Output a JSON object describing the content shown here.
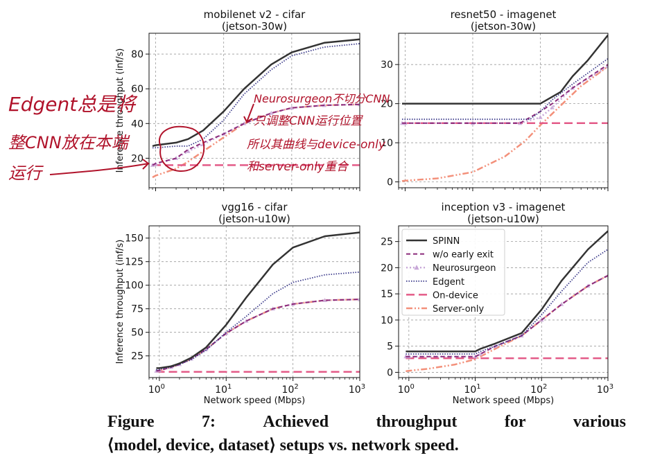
{
  "chart_data": [
    {
      "type": "line",
      "title": "mobilenet v2 - cifar",
      "subtitle": "(jetson-30w)",
      "xlabel": "",
      "ylabel": "Inference throughput (inf/s)",
      "xscale": "log",
      "xlim": [
        0.8,
        1000
      ],
      "ylim": [
        3,
        92
      ],
      "yticks": [
        20,
        40,
        60,
        80
      ],
      "grid": true,
      "series": [
        {
          "name": "SPINN",
          "x": [
            0.9,
            1,
            2,
            3,
            5,
            10,
            20,
            50,
            100,
            300,
            1000
          ],
          "values": [
            27,
            27.5,
            29,
            31,
            36,
            47,
            60,
            74,
            81,
            86.5,
            88.5
          ]
        },
        {
          "name": "w/o early exit",
          "x": [
            0.9,
            1,
            2,
            3,
            5,
            10,
            20,
            50,
            100,
            300,
            1000
          ],
          "values": [
            16,
            17,
            20,
            25,
            29,
            34,
            40,
            46,
            49,
            50.5,
            51
          ]
        },
        {
          "name": "Neurosurgeon",
          "x": [
            0.9,
            1,
            2,
            3,
            5,
            10,
            20,
            50,
            100,
            300,
            1000
          ],
          "values": [
            16,
            16.5,
            20,
            24,
            28,
            34,
            40,
            46,
            49,
            50.5,
            51
          ]
        },
        {
          "name": "Edgent",
          "x": [
            0.9,
            1,
            2,
            3,
            5,
            10,
            20,
            50,
            100,
            300,
            1000
          ],
          "values": [
            26,
            26,
            27,
            27,
            31,
            42,
            57,
            71,
            79,
            84,
            86
          ]
        },
        {
          "name": "On-device",
          "x": [
            0.9,
            1000
          ],
          "values": [
            16,
            16
          ]
        },
        {
          "name": "Server-only",
          "x": [
            0.9,
            1,
            2,
            3,
            5,
            10,
            20,
            50,
            100,
            300,
            1000
          ],
          "values": [
            9,
            10,
            14,
            18,
            24,
            32,
            40,
            46,
            49,
            50.5,
            51
          ]
        }
      ]
    },
    {
      "type": "line",
      "title": "resnet50 - imagenet",
      "subtitle": "(jetson-30w)",
      "xlabel": "",
      "ylabel": "",
      "xscale": "log",
      "xlim": [
        0.8,
        1000
      ],
      "ylim": [
        -1.5,
        38
      ],
      "yticks": [
        0,
        10,
        20,
        30
      ],
      "grid": true,
      "series": [
        {
          "name": "SPINN",
          "x": [
            0.9,
            1,
            10,
            100,
            200,
            300,
            500,
            1000
          ],
          "values": [
            20,
            20,
            20,
            20,
            23,
            27,
            31,
            37.5
          ]
        },
        {
          "name": "w/o early exit",
          "x": [
            0.9,
            1,
            10,
            50,
            100,
            150,
            300,
            1000
          ],
          "values": [
            15,
            15,
            15,
            15,
            18,
            20,
            24,
            30
          ]
        },
        {
          "name": "Neurosurgeon",
          "x": [
            0.9,
            1,
            10,
            50,
            100,
            150,
            300,
            1000
          ],
          "values": [
            15,
            15,
            15,
            15,
            16.5,
            19,
            24,
            29.5
          ]
        },
        {
          "name": "Edgent",
          "x": [
            0.9,
            1,
            10,
            70,
            100,
            150,
            300,
            1000
          ],
          "values": [
            16,
            16,
            16,
            16,
            18,
            21,
            25,
            31.5
          ]
        },
        {
          "name": "On-device",
          "x": [
            0.9,
            1000
          ],
          "values": [
            15,
            15
          ]
        },
        {
          "name": "Server-only",
          "x": [
            0.9,
            1,
            3,
            10,
            30,
            60,
            100,
            200,
            400,
            1000
          ],
          "values": [
            0.2,
            0.3,
            0.9,
            2.5,
            6.5,
            10.5,
            14.5,
            19.5,
            24.5,
            29.5
          ]
        }
      ]
    },
    {
      "type": "line",
      "title": "vgg16 - cifar",
      "subtitle": "(jetson-u10w)",
      "xlabel": "Network speed (Mbps)",
      "ylabel": "Inference throughput (inf/s)",
      "xscale": "log",
      "xlim": [
        0.7,
        1000
      ],
      "xticklabels": [
        "10^0",
        "10^1",
        "10^2",
        "10^3"
      ],
      "ylim": [
        2,
        163
      ],
      "yticks": [
        25,
        50,
        75,
        100,
        125,
        150
      ],
      "grid": true,
      "series": [
        {
          "name": "SPINN",
          "x": [
            0.9,
            1,
            1.5,
            2,
            3,
            5,
            10,
            20,
            50,
            100,
            300,
            1000
          ],
          "values": [
            12,
            12,
            14,
            17,
            23,
            34,
            58,
            87,
            122,
            140,
            152,
            156
          ]
        },
        {
          "name": "w/o early exit",
          "x": [
            0.9,
            1,
            1.5,
            2,
            3,
            5,
            10,
            20,
            50,
            100,
            300,
            1000
          ],
          "values": [
            9,
            9.5,
            13,
            16,
            22,
            32,
            49,
            62,
            75,
            80,
            84,
            85
          ]
        },
        {
          "name": "Neurosurgeon",
          "x": [
            0.9,
            1,
            1.5,
            2,
            3,
            5,
            10,
            20,
            50,
            100,
            300,
            1000
          ],
          "values": [
            9,
            9.5,
            13,
            16,
            22,
            32,
            49,
            62,
            75,
            80,
            84,
            85
          ]
        },
        {
          "name": "Edgent",
          "x": [
            0.9,
            1,
            1.5,
            2,
            3,
            5,
            10,
            20,
            50,
            100,
            300,
            1000
          ],
          "values": [
            10,
            11,
            13,
            16,
            21,
            31,
            50,
            67,
            91,
            103,
            111,
            114
          ]
        },
        {
          "name": "On-device",
          "x": [
            0.9,
            1000
          ],
          "values": [
            8,
            8
          ]
        },
        {
          "name": "Server-only",
          "x": [
            0.9,
            1,
            1.5,
            2,
            3,
            5,
            10,
            20,
            50,
            100,
            300,
            1000
          ],
          "values": [
            9,
            9.5,
            13,
            16,
            22,
            32,
            49,
            62,
            75,
            80,
            84,
            85
          ]
        }
      ]
    },
    {
      "type": "line",
      "title": "inception v3 - imagenet",
      "subtitle": "(jetson-u10w)",
      "xlabel": "Network speed (Mbps)",
      "ylabel": "",
      "xscale": "log",
      "xlim": [
        0.7,
        1000
      ],
      "xticklabels": [
        "10^0",
        "10^1",
        "10^2",
        "10^3"
      ],
      "ylim": [
        -1,
        28
      ],
      "yticks": [
        0,
        5,
        10,
        15,
        20,
        25
      ],
      "grid": true,
      "legend": "top-left",
      "series": [
        {
          "name": "SPINN",
          "x": [
            0.9,
            1,
            10,
            12,
            20,
            50,
            100,
            200,
            500,
            1000
          ],
          "values": [
            4,
            4,
            4,
            4.5,
            5.5,
            7.5,
            12,
            17.5,
            23.5,
            27
          ]
        },
        {
          "name": "w/o early exit",
          "x": [
            0.9,
            1,
            10,
            12,
            20,
            50,
            100,
            200,
            500,
            1000
          ],
          "values": [
            3,
            3,
            3,
            3.5,
            5,
            7,
            10,
            13,
            16.5,
            18.5
          ]
        },
        {
          "name": "Neurosurgeon",
          "x": [
            0.9,
            1,
            10,
            12,
            20,
            50,
            100,
            200,
            500,
            1000
          ],
          "values": [
            3,
            3,
            3,
            3.5,
            5,
            7,
            10,
            13,
            16.5,
            18.5
          ]
        },
        {
          "name": "Edgent",
          "x": [
            0.9,
            1,
            10,
            12,
            20,
            50,
            100,
            200,
            500,
            1000
          ],
          "values": [
            3.5,
            3.5,
            3.5,
            4,
            5,
            7,
            11,
            15.5,
            21,
            23.5
          ]
        },
        {
          "name": "On-device",
          "x": [
            0.9,
            1000
          ],
          "values": [
            2.7,
            2.7
          ]
        },
        {
          "name": "Server-only",
          "x": [
            0.9,
            1,
            2,
            5,
            10,
            20,
            50,
            100,
            200,
            500,
            1000
          ],
          "values": [
            0.2,
            0.3,
            0.7,
            1.5,
            2.5,
            4.5,
            7,
            10,
            13,
            16.5,
            18.5
          ]
        }
      ]
    }
  ],
  "legend": [
    {
      "label": "SPINN",
      "color": "#333333",
      "dash": "",
      "width": 2.5,
      "marker": ""
    },
    {
      "label": "w/o early exit",
      "color": "#8b2a7a",
      "dash": "6 4",
      "width": 2,
      "marker": ""
    },
    {
      "label": "Neurosurgeon",
      "color": "#c8a8d8",
      "dash": "2 3",
      "width": 2.5,
      "marker": "triangle"
    },
    {
      "label": "Edgent",
      "color": "#3d3c8c",
      "dash": "1.5 2",
      "width": 1.8,
      "marker": ""
    },
    {
      "label": "On-device",
      "color": "#e35a87",
      "dash": "12 6",
      "width": 2.5,
      "marker": ""
    },
    {
      "label": "Server-only",
      "color": "#f3907a",
      "dash": "9 3 2 3 2 3",
      "width": 2.5,
      "marker": ""
    }
  ],
  "annotations": [
    "Edgent总是将",
    "整CNN放在本端",
    "运行",
    "Neurosurgeon不切分CNN",
    "只调整CNN运行位置",
    "所以其曲线与device-only",
    "和server-only重合"
  ],
  "caption": {
    "line1": [
      "Figure",
      "7:",
      "Achieved",
      "throughput",
      "for",
      "various"
    ],
    "line2": "⟨model, device, dataset⟩ setups vs. network speed."
  }
}
